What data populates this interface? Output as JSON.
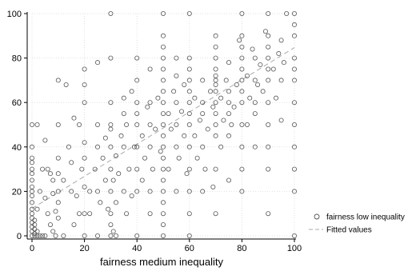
{
  "chart_data": {
    "type": "scatter",
    "title": "",
    "xlabel": "fairness medium inequality",
    "ylabel": "",
    "xlim": [
      0,
      100
    ],
    "ylim": [
      0,
      100
    ],
    "x_ticks": [
      0,
      20,
      40,
      60,
      80,
      100
    ],
    "y_ticks": [
      0,
      20,
      40,
      60,
      80,
      100
    ],
    "grid": "dotted",
    "legend_placement": "right",
    "series": [
      {
        "name": "fairness low inequality",
        "kind": "scatter",
        "marker": "hollow-circle",
        "color": "#555555",
        "points": [
          [
            0,
            0
          ],
          [
            0,
            2
          ],
          [
            0,
            4
          ],
          [
            0,
            6
          ],
          [
            0,
            8
          ],
          [
            0,
            10
          ],
          [
            0,
            12
          ],
          [
            0,
            15
          ],
          [
            0,
            18
          ],
          [
            0,
            20
          ],
          [
            0,
            22
          ],
          [
            0,
            25
          ],
          [
            0,
            28
          ],
          [
            0,
            30
          ],
          [
            0,
            33
          ],
          [
            0,
            35
          ],
          [
            0,
            40
          ],
          [
            0,
            50
          ],
          [
            1,
            0
          ],
          [
            1,
            1
          ],
          [
            1,
            3
          ],
          [
            1,
            5
          ],
          [
            1,
            7
          ],
          [
            2,
            0
          ],
          [
            2,
            2
          ],
          [
            2,
            12
          ],
          [
            3,
            0
          ],
          [
            4,
            0
          ],
          [
            5,
            0
          ],
          [
            3,
            20
          ],
          [
            5,
            17
          ],
          [
            4,
            30
          ],
          [
            2,
            50
          ],
          [
            5,
            43
          ],
          [
            6,
            30
          ],
          [
            7,
            28
          ],
          [
            8,
            19
          ],
          [
            8,
            25
          ],
          [
            9,
            11
          ],
          [
            10,
            8
          ],
          [
            10,
            15
          ],
          [
            10,
            20
          ],
          [
            10,
            28
          ],
          [
            10,
            35
          ],
          [
            10,
            50
          ],
          [
            10,
            70
          ],
          [
            6,
            10
          ],
          [
            7,
            5
          ],
          [
            8,
            2
          ],
          [
            9,
            0
          ],
          [
            12,
            0
          ],
          [
            12,
            25
          ],
          [
            14,
            40
          ],
          [
            15,
            20
          ],
          [
            15,
            33
          ],
          [
            16,
            5
          ],
          [
            17,
            18
          ],
          [
            18,
            10
          ],
          [
            19,
            30
          ],
          [
            20,
            0
          ],
          [
            20,
            10
          ],
          [
            20,
            22
          ],
          [
            20,
            35
          ],
          [
            20,
            42
          ],
          [
            20,
            60
          ],
          [
            20,
            68
          ],
          [
            20,
            75
          ],
          [
            18,
            50
          ],
          [
            16,
            53
          ],
          [
            13,
            68
          ],
          [
            22,
            10
          ],
          [
            22,
            20
          ],
          [
            24,
            30
          ],
          [
            25,
            0
          ],
          [
            25,
            20
          ],
          [
            25,
            40
          ],
          [
            25,
            50
          ],
          [
            25,
            78
          ],
          [
            26,
            15
          ],
          [
            27,
            35
          ],
          [
            28,
            25
          ],
          [
            28,
            44
          ],
          [
            29,
            12
          ],
          [
            30,
            0
          ],
          [
            30,
            5
          ],
          [
            30,
            10
          ],
          [
            30,
            20
          ],
          [
            30,
            30
          ],
          [
            30,
            40
          ],
          [
            30,
            48
          ],
          [
            30,
            50
          ],
          [
            30,
            60
          ],
          [
            30,
            80
          ],
          [
            30,
            100
          ],
          [
            31,
            2
          ],
          [
            31,
            25
          ],
          [
            32,
            0
          ],
          [
            32,
            15
          ],
          [
            32,
            36
          ],
          [
            33,
            28
          ],
          [
            34,
            45
          ],
          [
            35,
            20
          ],
          [
            35,
            40
          ],
          [
            35,
            55
          ],
          [
            35,
            62
          ],
          [
            36,
            10
          ],
          [
            36,
            50
          ],
          [
            37,
            30
          ],
          [
            38,
            18
          ],
          [
            38,
            65
          ],
          [
            39,
            40
          ],
          [
            40,
            0
          ],
          [
            40,
            20
          ],
          [
            40,
            30
          ],
          [
            40,
            40
          ],
          [
            40,
            50
          ],
          [
            40,
            55
          ],
          [
            40,
            60
          ],
          [
            40,
            70
          ],
          [
            40,
            80
          ],
          [
            42,
            25
          ],
          [
            42,
            45
          ],
          [
            43,
            35
          ],
          [
            44,
            58
          ],
          [
            45,
            10
          ],
          [
            45,
            20
          ],
          [
            45,
            40
          ],
          [
            45,
            50
          ],
          [
            45,
            60
          ],
          [
            45,
            75
          ],
          [
            46,
            30
          ],
          [
            47,
            48
          ],
          [
            48,
            62
          ],
          [
            49,
            38
          ],
          [
            50,
            0
          ],
          [
            50,
            5
          ],
          [
            50,
            10
          ],
          [
            50,
            15
          ],
          [
            50,
            20
          ],
          [
            50,
            25
          ],
          [
            50,
            30
          ],
          [
            50,
            35
          ],
          [
            50,
            40
          ],
          [
            50,
            45
          ],
          [
            50,
            50
          ],
          [
            50,
            55
          ],
          [
            50,
            60
          ],
          [
            50,
            65
          ],
          [
            50,
            70
          ],
          [
            50,
            75
          ],
          [
            50,
            80
          ],
          [
            50,
            85
          ],
          [
            50,
            90
          ],
          [
            50,
            100
          ],
          [
            52,
            30
          ],
          [
            52,
            55
          ],
          [
            53,
            48
          ],
          [
            54,
            65
          ],
          [
            55,
            20
          ],
          [
            55,
            40
          ],
          [
            55,
            50
          ],
          [
            55,
            60
          ],
          [
            55,
            72
          ],
          [
            55,
            80
          ],
          [
            56,
            35
          ],
          [
            57,
            56
          ],
          [
            58,
            45
          ],
          [
            58,
            68
          ],
          [
            59,
            28
          ],
          [
            60,
            0
          ],
          [
            60,
            10
          ],
          [
            60,
            20
          ],
          [
            60,
            30
          ],
          [
            60,
            40
          ],
          [
            60,
            50
          ],
          [
            60,
            55
          ],
          [
            60,
            60
          ],
          [
            60,
            65
          ],
          [
            60,
            70
          ],
          [
            60,
            75
          ],
          [
            60,
            80
          ],
          [
            60,
            100
          ],
          [
            62,
            45
          ],
          [
            62,
            62
          ],
          [
            63,
            35
          ],
          [
            64,
            52
          ],
          [
            65,
            20
          ],
          [
            65,
            40
          ],
          [
            65,
            55
          ],
          [
            65,
            60
          ],
          [
            65,
            70
          ],
          [
            66,
            30
          ],
          [
            67,
            48
          ],
          [
            68,
            65
          ],
          [
            69,
            22
          ],
          [
            69,
            58
          ],
          [
            70,
            10
          ],
          [
            70,
            30
          ],
          [
            70,
            45
          ],
          [
            70,
            50
          ],
          [
            70,
            55
          ],
          [
            70,
            60
          ],
          [
            70,
            65
          ],
          [
            70,
            68
          ],
          [
            70,
            70
          ],
          [
            70,
            72
          ],
          [
            70,
            75
          ],
          [
            70,
            80
          ],
          [
            70,
            85
          ],
          [
            70,
            90
          ],
          [
            72,
            40
          ],
          [
            72,
            62
          ],
          [
            73,
            52
          ],
          [
            74,
            70
          ],
          [
            75,
            25
          ],
          [
            75,
            45
          ],
          [
            75,
            55
          ],
          [
            75,
            60
          ],
          [
            75,
            65
          ],
          [
            75,
            78
          ],
          [
            76,
            50
          ],
          [
            77,
            58
          ],
          [
            78,
            68
          ],
          [
            79,
            88
          ],
          [
            80,
            20
          ],
          [
            80,
            30
          ],
          [
            80,
            40
          ],
          [
            80,
            50
          ],
          [
            80,
            60
          ],
          [
            80,
            65
          ],
          [
            80,
            70
          ],
          [
            80,
            75
          ],
          [
            80,
            80
          ],
          [
            80,
            85
          ],
          [
            80,
            90
          ],
          [
            80,
            100
          ],
          [
            82,
            50
          ],
          [
            82,
            72
          ],
          [
            83,
            62
          ],
          [
            84,
            84
          ],
          [
            85,
            40
          ],
          [
            85,
            55
          ],
          [
            85,
            60
          ],
          [
            85,
            70
          ],
          [
            85,
            80
          ],
          [
            86,
            68
          ],
          [
            87,
            77
          ],
          [
            88,
            65
          ],
          [
            89,
            92
          ],
          [
            90,
            10
          ],
          [
            90,
            30
          ],
          [
            90,
            40
          ],
          [
            90,
            50
          ],
          [
            90,
            60
          ],
          [
            90,
            70
          ],
          [
            90,
            75
          ],
          [
            90,
            80
          ],
          [
            90,
            85
          ],
          [
            90,
            90
          ],
          [
            90,
            100
          ],
          [
            92,
            75
          ],
          [
            93,
            62
          ],
          [
            94,
            82
          ],
          [
            95,
            52
          ],
          [
            95,
            70
          ],
          [
            95,
            88
          ],
          [
            96,
            78
          ],
          [
            97,
            100
          ],
          [
            100,
            0
          ],
          [
            100,
            20
          ],
          [
            100,
            30
          ],
          [
            100,
            40
          ],
          [
            100,
            50
          ],
          [
            100,
            60
          ],
          [
            100,
            70
          ],
          [
            100,
            75
          ],
          [
            100,
            80
          ],
          [
            100,
            90
          ],
          [
            100,
            95
          ],
          [
            100,
            100
          ]
        ]
      },
      {
        "name": "Fitted values",
        "kind": "line",
        "dash": "dashed",
        "color": "#aaaaaa",
        "x": [
          0,
          100
        ],
        "y": [
          12.3,
          84.7
        ]
      }
    ]
  }
}
